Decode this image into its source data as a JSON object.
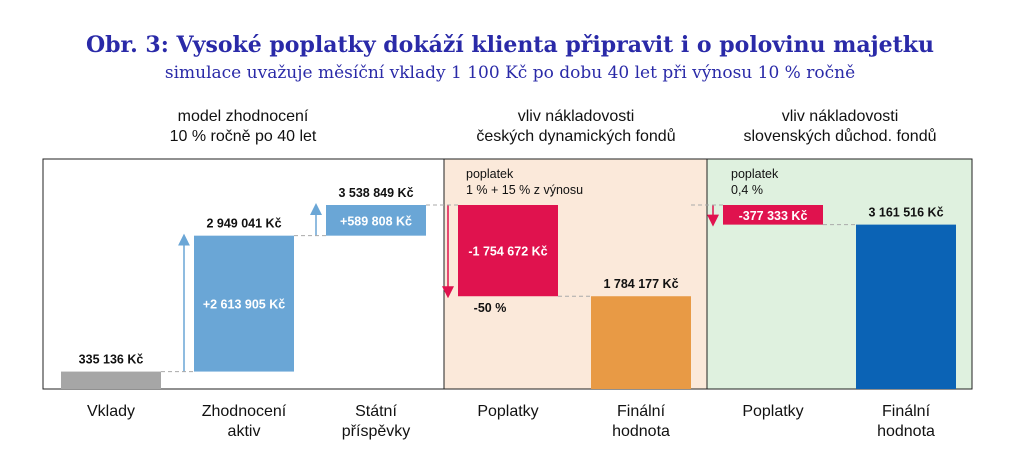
{
  "title": "Obr. 3: Vysoké poplatky dokáží klienta připravit i o polovinu majetku",
  "subtitle": "simulace uvažuje měsíční vklady 1 100 Kč po dobu 40 let při výnosu 10 % ročně",
  "sections": [
    {
      "line1": "model zhodnocení",
      "line2": "10 % ročně po 40 let",
      "bg": "#ffffff"
    },
    {
      "line1": "vliv nákladovosti",
      "line2": "českých dynamických fondů",
      "bg": "#fbe9da"
    },
    {
      "line1": "vliv nákladovosti",
      "line2": "slovenských důchod. fondů",
      "bg": "#dff1df"
    }
  ],
  "colors": {
    "gray": "#a6a6a6",
    "lightblue": "#6aa6d6",
    "red": "#e0124e",
    "orange": "#e89a45",
    "blue": "#0b63b5",
    "arrow_blue": "#6aa6d6",
    "arrow_red": "#e0124e"
  },
  "chart_data": {
    "type": "bar",
    "title": "Obr. 3: Vysoké poplatky dokáží klienta připravit i o polovinu majetku",
    "subtitle": "simulace uvažuje měsíční vklady 1 100 Kč po dobu 40 let při výnosu 10 % ročně",
    "ylim": [
      0,
      4000000
    ],
    "grid": false,
    "bars": [
      {
        "key": "vklady",
        "category_lines": [
          "Vklady"
        ],
        "base": 0,
        "value": 335136,
        "color": "gray",
        "label": "335 136 Kč",
        "label_pos": "above"
      },
      {
        "key": "zhodnoceni",
        "category_lines": [
          "Zhodnocení",
          "aktiv"
        ],
        "base": 335136,
        "value": 2949041,
        "color": "lightblue",
        "label": "2 949 041 Kč",
        "label_pos": "above",
        "inner_label": "+2 613 905 Kč",
        "arrow": "up"
      },
      {
        "key": "statni",
        "category_lines": [
          "Státní",
          "příspěvky"
        ],
        "base": 2949041,
        "value": 3538849,
        "color": "lightblue",
        "label": "3 538 849 Kč",
        "label_pos": "above",
        "inner_label": "+589 808 Kč",
        "arrow": "up"
      },
      {
        "key": "poplatky_cz",
        "category_lines": [
          "Poplatky"
        ],
        "base": 3538849,
        "value": 1784177,
        "color": "red",
        "label": "-1 754 672 Kč",
        "label_pos": "inside",
        "note_lines": [
          "poplatek",
          "1 % + 15 % z výnosu"
        ],
        "below_label": "-50 %",
        "arrow": "down"
      },
      {
        "key": "final_cz",
        "category_lines": [
          "Finální",
          "hodnota"
        ],
        "base": 0,
        "value": 1784177,
        "color": "orange",
        "label": "1 784 177 Kč",
        "label_pos": "above"
      },
      {
        "key": "poplatky_sk",
        "category_lines": [
          "Poplatky"
        ],
        "base": 3538849,
        "value": 3161516,
        "color": "red",
        "label": "-377 333 Kč",
        "label_pos": "inside",
        "note_lines": [
          "poplatek",
          "0,4 %"
        ],
        "arrow": "down"
      },
      {
        "key": "final_sk",
        "category_lines": [
          "Finální",
          "hodnota"
        ],
        "base": 0,
        "value": 3161516,
        "color": "blue",
        "label": "3 161 516 Kč",
        "label_pos": "above"
      }
    ]
  }
}
